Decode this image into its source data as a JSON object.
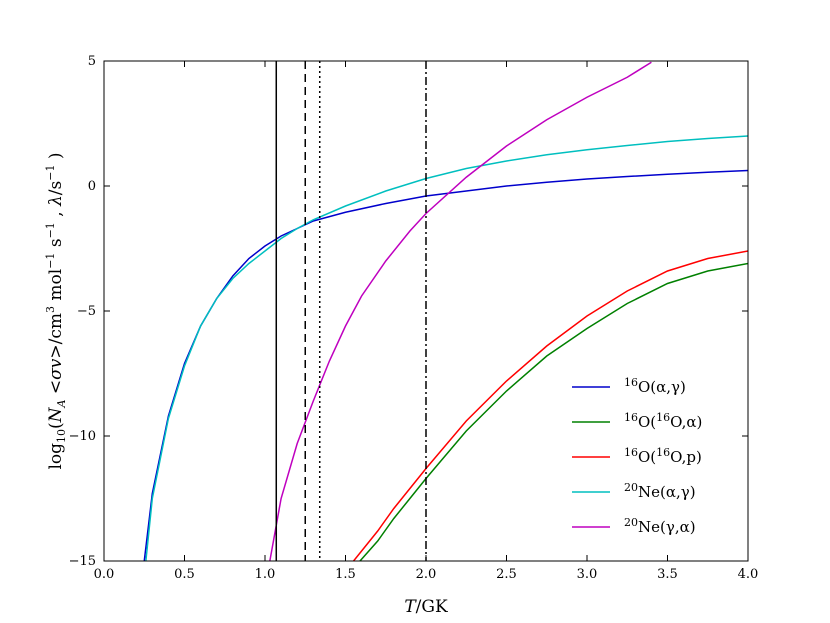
{
  "chart_data": {
    "type": "line",
    "title": "",
    "xlabel": "T/GK",
    "ylabel": "log10(NA <σv>/cm3 mol−1 s−1 , λ/s−1 )",
    "xlim": [
      0.0,
      4.0
    ],
    "ylim": [
      -15,
      5
    ],
    "x_ticks": [
      "0.0",
      "0.5",
      "1.0",
      "1.5",
      "2.0",
      "2.5",
      "3.0",
      "3.5",
      "4.0"
    ],
    "y_ticks": [
      "−15",
      "−10",
      "−5",
      "0",
      "5"
    ],
    "grid": false,
    "legend_position": "lower-right",
    "vertical_lines": [
      {
        "x": 1.07,
        "style": "solid"
      },
      {
        "x": 1.25,
        "style": "dashed"
      },
      {
        "x": 1.34,
        "style": "dotted"
      },
      {
        "x": 2.0,
        "style": "dashdot"
      }
    ],
    "series": [
      {
        "name": "16O(α,γ)",
        "color": "#0000cc",
        "points": [
          [
            0.25,
            -15
          ],
          [
            0.3,
            -12.3
          ],
          [
            0.4,
            -9.2
          ],
          [
            0.5,
            -7.1
          ],
          [
            0.6,
            -5.6
          ],
          [
            0.7,
            -4.5
          ],
          [
            0.8,
            -3.6
          ],
          [
            0.9,
            -2.9
          ],
          [
            1.0,
            -2.4
          ],
          [
            1.1,
            -2.0
          ],
          [
            1.2,
            -1.7
          ],
          [
            1.3,
            -1.4
          ],
          [
            1.5,
            -1.05
          ],
          [
            1.75,
            -0.7
          ],
          [
            2.0,
            -0.4
          ],
          [
            2.25,
            -0.2
          ],
          [
            2.5,
            0.0
          ],
          [
            2.75,
            0.15
          ],
          [
            3.0,
            0.28
          ],
          [
            3.25,
            0.38
          ],
          [
            3.5,
            0.47
          ],
          [
            3.75,
            0.55
          ],
          [
            4.0,
            0.62
          ]
        ]
      },
      {
        "name": "16O(16O,α)",
        "color": "#008000",
        "points": [
          [
            1.59,
            -15
          ],
          [
            1.7,
            -14.2
          ],
          [
            1.8,
            -13.3
          ],
          [
            1.9,
            -12.5
          ],
          [
            2.0,
            -11.7
          ],
          [
            2.25,
            -9.8
          ],
          [
            2.5,
            -8.2
          ],
          [
            2.75,
            -6.8
          ],
          [
            3.0,
            -5.7
          ],
          [
            3.25,
            -4.7
          ],
          [
            3.5,
            -3.9
          ],
          [
            3.75,
            -3.4
          ],
          [
            4.0,
            -3.1
          ]
        ]
      },
      {
        "name": "16O(16O,p)",
        "color": "#ff0000",
        "points": [
          [
            1.55,
            -15
          ],
          [
            1.7,
            -13.8
          ],
          [
            1.8,
            -12.9
          ],
          [
            1.9,
            -12.1
          ],
          [
            2.0,
            -11.3
          ],
          [
            2.25,
            -9.4
          ],
          [
            2.5,
            -7.8
          ],
          [
            2.75,
            -6.4
          ],
          [
            3.0,
            -5.2
          ],
          [
            3.25,
            -4.2
          ],
          [
            3.5,
            -3.4
          ],
          [
            3.75,
            -2.9
          ],
          [
            4.0,
            -2.6
          ]
        ]
      },
      {
        "name": "20Ne(α,γ)",
        "color": "#00bfbf",
        "points": [
          [
            0.26,
            -15
          ],
          [
            0.3,
            -12.5
          ],
          [
            0.4,
            -9.3
          ],
          [
            0.5,
            -7.2
          ],
          [
            0.6,
            -5.6
          ],
          [
            0.7,
            -4.5
          ],
          [
            0.8,
            -3.7
          ],
          [
            0.9,
            -3.1
          ],
          [
            1.0,
            -2.6
          ],
          [
            1.1,
            -2.1
          ],
          [
            1.2,
            -1.7
          ],
          [
            1.3,
            -1.35
          ],
          [
            1.5,
            -0.8
          ],
          [
            1.75,
            -0.2
          ],
          [
            2.0,
            0.3
          ],
          [
            2.25,
            0.7
          ],
          [
            2.5,
            1.0
          ],
          [
            2.75,
            1.25
          ],
          [
            3.0,
            1.45
          ],
          [
            3.25,
            1.62
          ],
          [
            3.5,
            1.78
          ],
          [
            3.75,
            1.9
          ],
          [
            4.0,
            2.0
          ]
        ]
      },
      {
        "name": "20Ne(γ,α)",
        "color": "#bf00bf",
        "points": [
          [
            1.03,
            -15
          ],
          [
            1.1,
            -12.5
          ],
          [
            1.2,
            -10.3
          ],
          [
            1.3,
            -8.6
          ],
          [
            1.4,
            -7.0
          ],
          [
            1.5,
            -5.6
          ],
          [
            1.6,
            -4.4
          ],
          [
            1.75,
            -3.0
          ],
          [
            1.9,
            -1.8
          ],
          [
            2.0,
            -1.1
          ],
          [
            2.25,
            0.35
          ],
          [
            2.5,
            1.6
          ],
          [
            2.75,
            2.65
          ],
          [
            3.0,
            3.55
          ],
          [
            3.25,
            4.35
          ],
          [
            3.4,
            4.95
          ]
        ]
      }
    ]
  }
}
